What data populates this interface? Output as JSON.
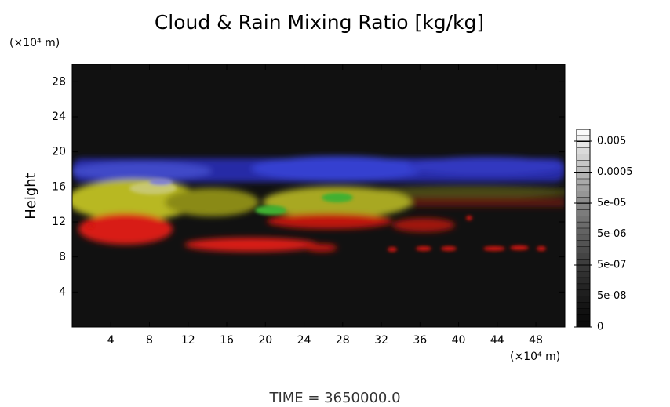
{
  "chart_data": {
    "type": "volume",
    "title": "Cloud & Rain Mixing Ratio [kg/kg]",
    "y_label": "Height",
    "y_unit": "(×10⁴ m)",
    "x_unit": "(×10⁴ m)",
    "xlim": [
      0,
      51
    ],
    "ylim": [
      0,
      30
    ],
    "xticks": [
      4,
      8,
      12,
      16,
      20,
      24,
      28,
      32,
      36,
      40,
      44,
      48
    ],
    "yticks": [
      4,
      8,
      12,
      16,
      20,
      24,
      28
    ],
    "colorbar": {
      "scale": "log",
      "lim": [
        5e-09,
        0.012
      ],
      "ticks": [
        {
          "value": 0.005,
          "label": "0.005"
        },
        {
          "value": 0.0005,
          "label": "0.0005"
        },
        {
          "value": 5e-05,
          "label": "5e-05"
        },
        {
          "value": 5e-06,
          "label": "5e-06"
        },
        {
          "value": 5e-07,
          "label": "5e-07"
        },
        {
          "value": 5e-08,
          "label": "5e-08"
        },
        0
      ]
    },
    "footer": "TIME = 3650000.0"
  }
}
